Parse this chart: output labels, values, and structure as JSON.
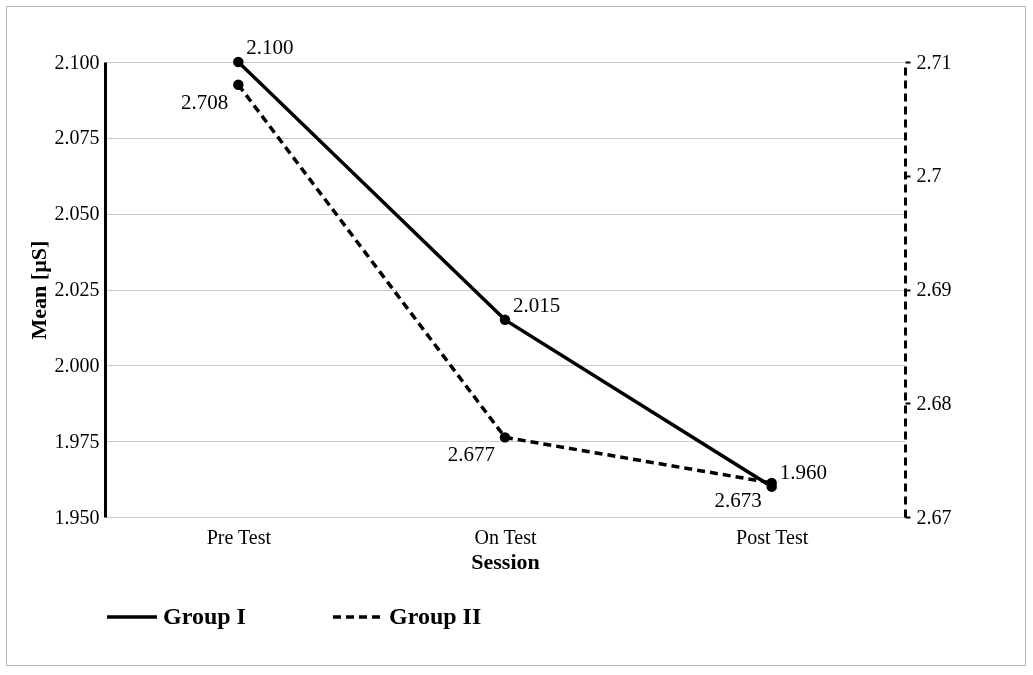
{
  "chart_data": {
    "type": "line",
    "xlabel": "Session",
    "ylabel": "Mean [µS]",
    "categories": [
      "Pre Test",
      "On Test",
      "Post Test"
    ],
    "series": [
      {
        "name": "Group I",
        "color": "#000000",
        "line_style": "solid",
        "axis": "y",
        "values": [
          2.1,
          2.015,
          1.96
        ],
        "value_labels": [
          "2.100",
          "2.015",
          "1.960"
        ]
      },
      {
        "name": "Group II",
        "color": "#000000",
        "line_style": "dashed",
        "axis": "y2",
        "values": [
          2.708,
          2.677,
          2.673
        ],
        "value_labels": [
          "2.708",
          "2.677",
          "2.673"
        ]
      }
    ],
    "ylim": [
      1.95,
      2.1
    ],
    "yticks": [
      {
        "value": 1.95,
        "label": "1.950"
      },
      {
        "value": 1.975,
        "label": "1.975"
      },
      {
        "value": 2.0,
        "label": "2.000"
      },
      {
        "value": 2.025,
        "label": "2.025"
      },
      {
        "value": 2.05,
        "label": "2.050"
      },
      {
        "value": 2.075,
        "label": "2.075"
      },
      {
        "value": 2.1,
        "label": "2.100"
      }
    ],
    "y2lim": [
      2.67,
      2.71
    ],
    "y2ticks": [
      2.67,
      2.68,
      2.69,
      2.7,
      2.71
    ],
    "grid": "y",
    "legend": "bottom",
    "marker": "circle"
  }
}
